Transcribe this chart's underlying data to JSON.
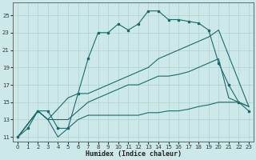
{
  "background_color": "#cce8e8",
  "grid_color": "#b0d0d0",
  "line_color": "#1a6b6b",
  "xlabel": "Humidex (Indice chaleur)",
  "xlim": [
    -0.5,
    23.5
  ],
  "ylim": [
    10.5,
    26.5
  ],
  "xticks": [
    0,
    1,
    2,
    3,
    4,
    5,
    6,
    7,
    8,
    9,
    10,
    11,
    12,
    13,
    14,
    15,
    16,
    17,
    18,
    19,
    20,
    21,
    22,
    23
  ],
  "yticks": [
    11,
    13,
    15,
    17,
    19,
    21,
    23,
    25
  ],
  "line1_x": [
    0,
    1,
    2,
    3,
    4,
    5,
    6,
    7,
    8,
    9,
    10,
    11,
    12,
    13,
    14,
    15,
    16,
    17,
    18,
    19,
    20,
    21,
    22,
    23
  ],
  "line1_y": [
    11,
    12,
    14,
    14,
    12,
    12,
    16,
    20,
    23,
    23,
    24,
    23.3,
    24,
    25.5,
    25.5,
    24.5,
    24.5,
    24.3,
    24.1,
    23.3,
    19.5,
    17,
    15,
    14
  ],
  "line2_x": [
    0,
    2,
    3,
    5,
    6,
    7,
    8,
    9,
    10,
    11,
    12,
    13,
    14,
    15,
    16,
    17,
    18,
    19,
    20,
    23
  ],
  "line2_y": [
    11,
    14,
    13,
    15.5,
    16,
    16,
    16.5,
    17,
    17.5,
    18,
    18.5,
    19,
    20,
    20.5,
    21,
    21.5,
    22,
    22.5,
    23.3,
    14.5
  ],
  "line3_x": [
    0,
    2,
    3,
    5,
    6,
    7,
    8,
    9,
    10,
    11,
    12,
    13,
    14,
    15,
    16,
    17,
    18,
    19,
    20,
    21,
    22,
    23
  ],
  "line3_y": [
    11,
    14,
    13,
    13,
    14,
    15,
    15.5,
    16,
    16.5,
    17,
    17,
    17.5,
    18,
    18,
    18.2,
    18.5,
    19,
    19.5,
    20,
    15.5,
    15,
    14.5
  ],
  "line4_x": [
    0,
    2,
    3,
    4,
    5,
    6,
    7,
    8,
    9,
    10,
    11,
    12,
    13,
    14,
    15,
    16,
    17,
    18,
    19,
    20,
    21,
    22,
    23
  ],
  "line4_y": [
    11,
    14,
    13,
    11,
    12,
    13,
    13.5,
    13.5,
    13.5,
    13.5,
    13.5,
    13.5,
    13.8,
    13.8,
    14,
    14,
    14.2,
    14.5,
    14.7,
    15,
    15,
    15,
    14.5
  ]
}
